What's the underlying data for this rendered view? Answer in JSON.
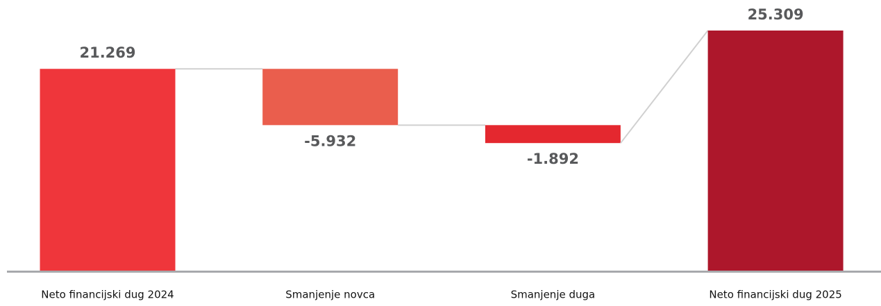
{
  "chart_data": {
    "type": "waterfall",
    "categories": [
      "Neto financijski dug 2024",
      "Smanjenje novca",
      "Smanjenje duga",
      "Neto financijski dug 2025"
    ],
    "values": [
      21269,
      -5932,
      -1892,
      25309
    ],
    "value_labels": [
      "21.269",
      "-5.932",
      "-1.892",
      "25.309"
    ],
    "colors": [
      "#ef363b",
      "#ea5e4d",
      "#e4282f",
      "#ad172b"
    ]
  }
}
